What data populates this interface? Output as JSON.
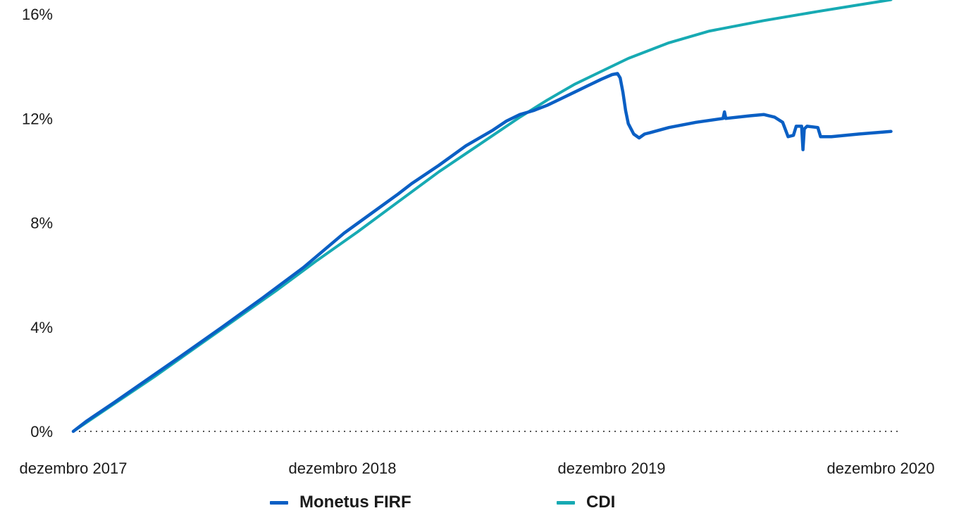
{
  "chart_data": {
    "type": "line",
    "title": "",
    "xlabel": "",
    "ylabel": "",
    "x_ticks": [
      "dezembro 2017",
      "dezembro 2018",
      "dezembro 2019",
      "dezembro 2020"
    ],
    "y_ticks": [
      "0%",
      "4%",
      "8%",
      "12%",
      "16%"
    ],
    "ylim": [
      0,
      16
    ],
    "xlim": [
      2017.95,
      2021.0
    ],
    "baseline_dotted": true,
    "legend_position": "bottom",
    "series": [
      {
        "name": "Monetus FIRF",
        "color": "#0a5fc4",
        "points": [
          [
            2017.95,
            0
          ],
          [
            2018.0,
            0.4
          ],
          [
            2018.1,
            1.1
          ],
          [
            2018.2,
            1.82
          ],
          [
            2018.35,
            2.9
          ],
          [
            2018.5,
            4.0
          ],
          [
            2018.65,
            5.12
          ],
          [
            2018.8,
            6.28
          ],
          [
            2018.95,
            7.6
          ],
          [
            2019.05,
            8.35
          ],
          [
            2019.15,
            9.1
          ],
          [
            2019.2,
            9.5
          ],
          [
            2019.3,
            10.2
          ],
          [
            2019.4,
            10.95
          ],
          [
            2019.5,
            11.55
          ],
          [
            2019.55,
            11.9
          ],
          [
            2019.6,
            12.15
          ],
          [
            2019.65,
            12.3
          ],
          [
            2019.7,
            12.5
          ],
          [
            2019.75,
            12.75
          ],
          [
            2019.8,
            13.0
          ],
          [
            2019.85,
            13.25
          ],
          [
            2019.9,
            13.5
          ],
          [
            2019.94,
            13.68
          ],
          [
            2019.96,
            13.72
          ],
          [
            2019.97,
            13.55
          ],
          [
            2019.98,
            13.0
          ],
          [
            2019.99,
            12.3
          ],
          [
            2020.0,
            11.8
          ],
          [
            2020.02,
            11.4
          ],
          [
            2020.04,
            11.25
          ],
          [
            2020.06,
            11.4
          ],
          [
            2020.08,
            11.45
          ],
          [
            2020.15,
            11.65
          ],
          [
            2020.25,
            11.85
          ],
          [
            2020.35,
            12.0
          ],
          [
            2020.355,
            12.25
          ],
          [
            2020.36,
            12.0
          ],
          [
            2020.45,
            12.1
          ],
          [
            2020.5,
            12.15
          ],
          [
            2020.54,
            12.05
          ],
          [
            2020.57,
            11.85
          ],
          [
            2020.59,
            11.3
          ],
          [
            2020.61,
            11.35
          ],
          [
            2020.62,
            11.7
          ],
          [
            2020.64,
            11.7
          ],
          [
            2020.645,
            10.8
          ],
          [
            2020.65,
            11.6
          ],
          [
            2020.66,
            11.7
          ],
          [
            2020.7,
            11.65
          ],
          [
            2020.71,
            11.3
          ],
          [
            2020.75,
            11.3
          ],
          [
            2020.85,
            11.4
          ],
          [
            2020.97,
            11.5
          ]
        ]
      },
      {
        "name": "CDI",
        "color": "#17aab3",
        "points": [
          [
            2017.95,
            0
          ],
          [
            2018.1,
            1.05
          ],
          [
            2018.25,
            2.1
          ],
          [
            2018.4,
            3.2
          ],
          [
            2018.55,
            4.3
          ],
          [
            2018.7,
            5.4
          ],
          [
            2018.85,
            6.55
          ],
          [
            2019.0,
            7.65
          ],
          [
            2019.15,
            8.8
          ],
          [
            2019.3,
            9.95
          ],
          [
            2019.45,
            11.0
          ],
          [
            2019.6,
            12.05
          ],
          [
            2019.7,
            12.7
          ],
          [
            2019.8,
            13.3
          ],
          [
            2019.9,
            13.8
          ],
          [
            2020.0,
            14.3
          ],
          [
            2020.15,
            14.9
          ],
          [
            2020.3,
            15.35
          ],
          [
            2020.5,
            15.75
          ],
          [
            2020.7,
            16.1
          ],
          [
            2020.85,
            16.35
          ],
          [
            2020.97,
            16.55
          ]
        ]
      }
    ]
  }
}
